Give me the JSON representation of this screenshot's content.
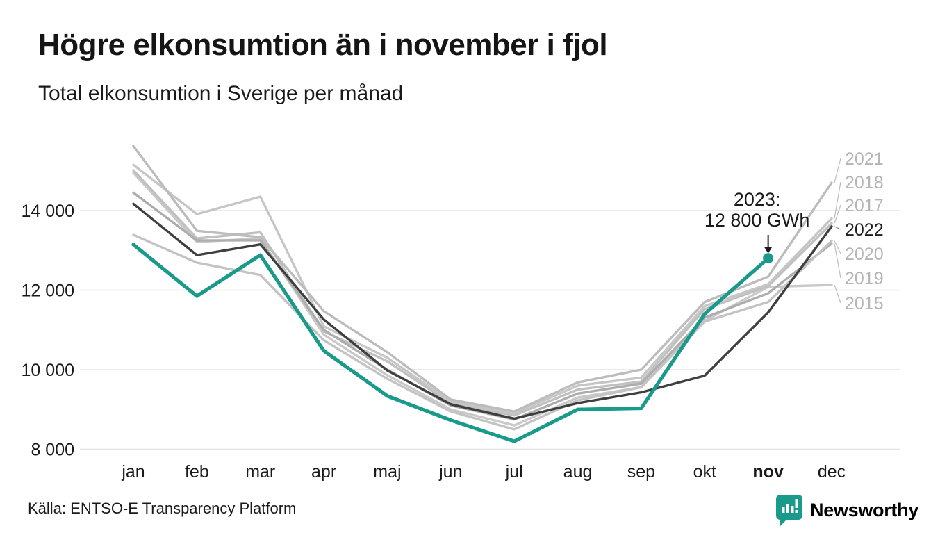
{
  "page": {
    "title": "Högre elkonsumtion än i november i fjol",
    "subtitle": "Total elkonsumtion i Sverige per månad",
    "source": "Källa: ENTSO-E Transparency Platform",
    "brand": "Newsworthy"
  },
  "colors": {
    "accent_teal": "#199a8b",
    "dark_line": "#3f3f3f",
    "grid": "#e4e4e4",
    "text": "#1a1a1a",
    "gray_label": "#b5b5b5",
    "leader": "#bdbdbd"
  },
  "annotation": {
    "line1": "2023:",
    "line2": "12 800 GWh",
    "target_series": "2023",
    "target_month": "nov",
    "target_value": 12800
  },
  "chart_data": {
    "type": "line",
    "title": "Total elkonsumtion i Sverige per månad",
    "unit": "GWh",
    "xlabel": "",
    "ylabel": "",
    "categories": [
      "jan",
      "feb",
      "mar",
      "apr",
      "maj",
      "jun",
      "jul",
      "aug",
      "sep",
      "okt",
      "nov",
      "dec"
    ],
    "bold_category": "nov",
    "grid": true,
    "legend_position": "right-end-labels",
    "ylim": [
      7900,
      15900
    ],
    "yticks": [
      {
        "value": 8000,
        "label": "8 000"
      },
      {
        "value": 10000,
        "label": "10 000"
      },
      {
        "value": 12000,
        "label": "12 000"
      },
      {
        "value": 14000,
        "label": "14 000"
      }
    ],
    "series": [
      {
        "name": "2015",
        "color": "#c9c9c9",
        "width": 3.4,
        "end_label": true,
        "values": [
          14950,
          13210,
          13300,
          10880,
          9860,
          9000,
          8600,
          9300,
          9560,
          11230,
          12080,
          12130
        ]
      },
      {
        "name": "2017",
        "color": "#c0c0c0",
        "width": 3.4,
        "end_label": true,
        "values": [
          15010,
          13300,
          13450,
          10965,
          10210,
          9150,
          8850,
          9500,
          9700,
          11520,
          12100,
          13680
        ]
      },
      {
        "name": "2018",
        "color": "#c6c6c6",
        "width": 3.4,
        "end_label": true,
        "values": [
          15150,
          13910,
          14350,
          11090,
          10300,
          9200,
          8900,
          9600,
          9800,
          11600,
          12150,
          13800
        ]
      },
      {
        "name": "2019",
        "color": "#adadad",
        "width": 3.4,
        "end_label": true,
        "values": [
          14450,
          13250,
          13250,
          11000,
          10000,
          9100,
          8750,
          9400,
          9650,
          11310,
          11920,
          13170
        ]
      },
      {
        "name": "2020",
        "color": "#c3c3c3",
        "width": 3.4,
        "end_label": true,
        "values": [
          13390,
          12690,
          12380,
          10740,
          9770,
          8950,
          8500,
          9230,
          9560,
          11210,
          11700,
          13240
        ]
      },
      {
        "name": "2021",
        "color": "#bcbcbc",
        "width": 3.4,
        "end_label": true,
        "values": [
          15620,
          13490,
          13330,
          11470,
          10440,
          9250,
          8950,
          9680,
          10000,
          11700,
          12340,
          14700
        ]
      },
      {
        "name": "2022",
        "color": "#3f3f3f",
        "width": 3.4,
        "end_label": true,
        "label_dark": true,
        "values": [
          14170,
          12880,
          13150,
          11260,
          9980,
          9130,
          8770,
          9160,
          9430,
          9850,
          11440,
          13600
        ]
      },
      {
        "name": "2023",
        "color": "#199a8b",
        "width": 5.2,
        "end_label": false,
        "highlight": true,
        "values": [
          13145,
          11850,
          12880,
          10475,
          9340,
          8730,
          8200,
          9000,
          9030,
          11400,
          12800
        ]
      }
    ]
  }
}
